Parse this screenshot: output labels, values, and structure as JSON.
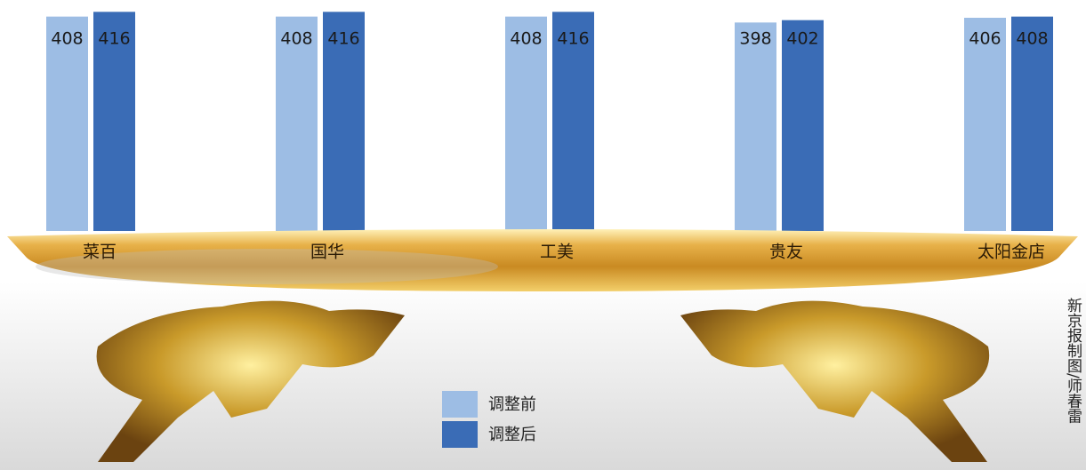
{
  "chart_data": {
    "type": "bar",
    "categories": [
      "菜百",
      "国华",
      "工美",
      "贵友",
      "太阳金店"
    ],
    "series": [
      {
        "name": "调整前",
        "color": "#9dbde4",
        "values": [
          408,
          408,
          408,
          398,
          406
        ]
      },
      {
        "name": "调整后",
        "color": "#3a6cb6",
        "values": [
          416,
          416,
          416,
          402,
          408
        ]
      }
    ],
    "ylim": [
      46,
      436
    ],
    "source": "新京报制图/师春雷"
  }
}
